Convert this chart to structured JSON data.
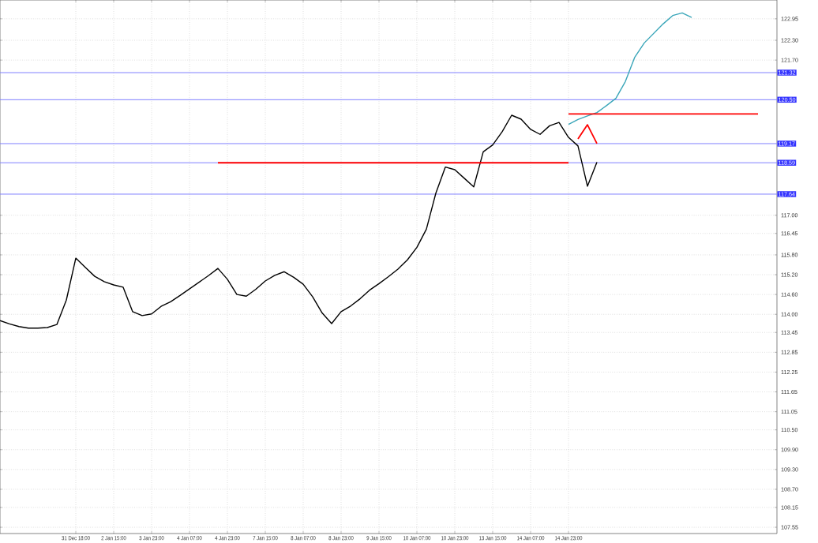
{
  "chart_data": {
    "type": "line",
    "categories": [
      null,
      null,
      null,
      null,
      null,
      null,
      null,
      null,
      "31 Dec 18:00",
      null,
      null,
      null,
      "2 Jan 15:00",
      null,
      null,
      null,
      "3 Jan 23:00",
      null,
      null,
      null,
      "4 Jan 07:00",
      null,
      null,
      null,
      "4 Jan 23:00",
      null,
      null,
      null,
      "7 Jan 15:00",
      null,
      null,
      null,
      "8 Jan 07:00",
      null,
      null,
      null,
      "8 Jan 23:00",
      null,
      null,
      null,
      "9 Jan 15:00",
      null,
      null,
      null,
      "10 Jan 07:00",
      null,
      null,
      null,
      "10 Jan 23:00",
      null,
      null,
      null,
      "13 Jan 15:00",
      null,
      null,
      null,
      "14 Jan 07:00",
      null,
      null,
      null,
      "14 Jan 23:00",
      null,
      null,
      null,
      null,
      null,
      null,
      null,
      null,
      null,
      null,
      null,
      null,
      null,
      null,
      null,
      null,
      null,
      null,
      null,
      null,
      null
    ],
    "ylim": [
      107.36,
      123.52
    ],
    "yticks": [
      107.55,
      108.15,
      {
        "value": 108.7,
        "label": "108.70"
      },
      {
        "value": 109.3,
        "label": "109.30"
      },
      {
        "value": 109.9,
        "label": "109.90"
      },
      {
        "value": 110.5,
        "label": "110.50"
      },
      111.05,
      111.65,
      112.25,
      112.85,
      113.45,
      {
        "value": 114.0,
        "label": "114.00"
      },
      {
        "value": 114.6,
        "label": "114.60"
      },
      {
        "value": 115.2,
        "label": "115.20"
      },
      {
        "value": 115.8,
        "label": "115.80"
      },
      116.45,
      {
        "value": 117.0,
        "label": "117.00"
      },
      {
        "value": 121.7,
        "label": "121.70"
      },
      {
        "value": 122.3,
        "label": "122.30"
      },
      122.95
    ],
    "grid": true,
    "marker": "none",
    "line_style": "solid",
    "series": [
      {
        "color": "#000000",
        "values": [
          113.81,
          113.71,
          113.63,
          113.58,
          113.58,
          113.6,
          113.69,
          114.43,
          115.7,
          115.42,
          115.15,
          114.99,
          114.89,
          114.82,
          114.08,
          113.96,
          114.01,
          114.24,
          114.38,
          114.57,
          114.77,
          114.97,
          115.17,
          115.39,
          115.06,
          114.6,
          114.55,
          114.76,
          115.01,
          115.18,
          115.29,
          115.12,
          114.91,
          114.53,
          114.04,
          113.72,
          114.08,
          114.25,
          114.47,
          114.73,
          114.93,
          115.14,
          115.37,
          115.65,
          116.03,
          116.58,
          117.67,
          118.46,
          118.38,
          118.12,
          117.86,
          118.92,
          119.13,
          119.53,
          120.03,
          119.91,
          119.6,
          119.45,
          119.71,
          119.81,
          119.36,
          119.1,
          117.88,
          118.61,
          null,
          null,
          null,
          null,
          null,
          null,
          null,
          null,
          null,
          null,
          null,
          null,
          null,
          null,
          null,
          null,
          null,
          null
        ]
      },
      {
        "color": "#3aa6b9",
        "values": [
          null,
          null,
          null,
          null,
          null,
          null,
          null,
          null,
          null,
          null,
          null,
          null,
          null,
          null,
          null,
          null,
          null,
          null,
          null,
          null,
          null,
          null,
          null,
          null,
          null,
          null,
          null,
          null,
          null,
          null,
          null,
          null,
          null,
          null,
          null,
          null,
          null,
          null,
          null,
          null,
          null,
          null,
          null,
          null,
          null,
          null,
          null,
          null,
          null,
          null,
          null,
          null,
          null,
          null,
          null,
          null,
          null,
          null,
          null,
          null,
          119.75,
          119.9,
          120.01,
          120.11,
          120.32,
          120.54,
          121.05,
          121.79,
          122.22,
          122.51,
          122.8,
          123.05,
          123.13,
          122.99,
          null,
          null,
          null,
          null,
          null,
          null,
          null,
          null
        ]
      },
      {
        "color": "#ff0000",
        "values": [
          null,
          null,
          null,
          null,
          null,
          null,
          null,
          null,
          null,
          null,
          null,
          null,
          null,
          null,
          null,
          null,
          null,
          null,
          null,
          null,
          null,
          null,
          null,
          null,
          null,
          null,
          null,
          null,
          null,
          null,
          null,
          null,
          null,
          null,
          null,
          null,
          null,
          null,
          null,
          null,
          null,
          null,
          null,
          null,
          null,
          null,
          null,
          null,
          null,
          null,
          null,
          null,
          null,
          null,
          null,
          null,
          null,
          null,
          null,
          null,
          null,
          119.31,
          119.74,
          119.17,
          null,
          null,
          null,
          null,
          null,
          null,
          null,
          null,
          null,
          null,
          null,
          null,
          null,
          null,
          null,
          null,
          null,
          null
        ]
      },
      {
        "color": "#ff0000",
        "values": [
          null,
          null,
          null,
          null,
          null,
          null,
          null,
          null,
          null,
          null,
          null,
          null,
          null,
          null,
          null,
          null,
          null,
          null,
          null,
          null,
          null,
          null,
          null,
          null,
          null,
          null,
          null,
          null,
          null,
          null,
          null,
          null,
          null,
          null,
          null,
          null,
          null,
          null,
          null,
          null,
          null,
          null,
          null,
          null,
          null,
          null,
          null,
          null,
          null,
          null,
          null,
          null,
          null,
          null,
          null,
          null,
          null,
          null,
          null,
          null,
          120.07,
          120.07,
          120.07,
          120.07,
          120.07,
          120.07,
          120.07,
          120.07,
          120.07,
          120.07,
          120.07,
          120.07,
          120.07,
          120.07,
          120.07,
          120.07,
          120.07,
          120.07,
          120.07,
          120.07,
          120.07,
          null
        ]
      },
      {
        "color": "#ff0000",
        "values": [
          null,
          null,
          null,
          null,
          null,
          null,
          null,
          null,
          null,
          null,
          null,
          null,
          null,
          null,
          null,
          null,
          null,
          null,
          null,
          null,
          null,
          null,
          null,
          118.59,
          118.59,
          118.59,
          118.59,
          118.59,
          118.59,
          118.59,
          118.59,
          118.59,
          118.59,
          118.59,
          118.59,
          118.59,
          118.59,
          118.59,
          118.59,
          118.59,
          118.59,
          118.59,
          118.59,
          118.59,
          118.59,
          118.59,
          118.59,
          118.59,
          118.59,
          118.59,
          118.59,
          118.59,
          118.59,
          118.59,
          118.59,
          118.59,
          118.59,
          118.59,
          118.59,
          118.59,
          118.59,
          null,
          null,
          null,
          null,
          null,
          null,
          null,
          null,
          null,
          null,
          null,
          null,
          null,
          null,
          null,
          null,
          null,
          null,
          null,
          null,
          null
        ]
      }
    ],
    "ref_lines": [
      {
        "axis": "y",
        "value": 121.32,
        "label": "121.32",
        "color": "#8080ff"
      },
      {
        "axis": "y",
        "value": 120.5,
        "label": "120.50",
        "color": "#8080ff"
      },
      {
        "axis": "y",
        "value": 119.17,
        "label": "119.17",
        "color": "#8080ff"
      },
      {
        "axis": "y",
        "value": 118.59,
        "label": "118.59",
        "color": "#8080ff"
      },
      {
        "axis": "y",
        "value": 117.64,
        "label": "117.64",
        "color": "#8080ff"
      }
    ]
  }
}
